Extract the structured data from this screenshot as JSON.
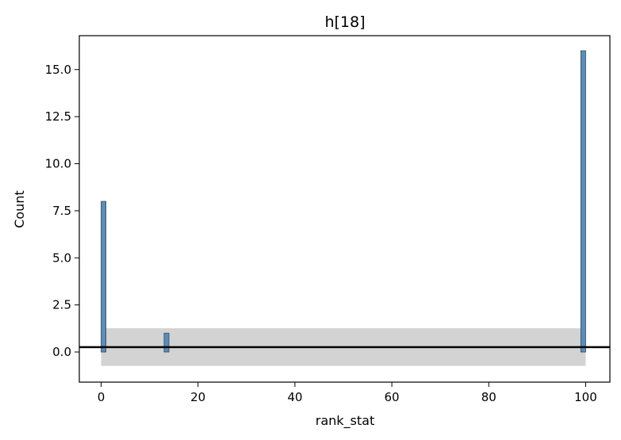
{
  "chart_data": {
    "type": "bar",
    "title": "h[18]",
    "xlabel": "rank_stat",
    "ylabel": "Count",
    "xlim": [
      -4.5,
      105
    ],
    "ylim": [
      -1.6,
      16.8
    ],
    "xticks": [
      0,
      20,
      40,
      60,
      80,
      100
    ],
    "xtick_labels": [
      "0",
      "20",
      "40",
      "60",
      "80",
      "100"
    ],
    "yticks": [
      0,
      2.5,
      5,
      7.5,
      10,
      12.5,
      15
    ],
    "ytick_labels": [
      "0.0",
      "2.5",
      "5.0",
      "7.5",
      "10.0",
      "12.5",
      "15.0"
    ],
    "bars": [
      {
        "x0": 0,
        "x1": 1,
        "count": 8
      },
      {
        "x0": 13,
        "x1": 14,
        "count": 1
      },
      {
        "x0": 99,
        "x1": 100,
        "count": 16
      }
    ],
    "reference_line": {
      "y": 0.26
    },
    "reference_band": {
      "x0": 0,
      "x1": 100,
      "y0": -0.74,
      "y1": 1.26
    },
    "colors": {
      "bar_fill": "#5b8db8",
      "bar_edge": "#2c4a66",
      "band": "#d3d3d3",
      "line": "#000000"
    },
    "grid": false,
    "legend": "none"
  }
}
